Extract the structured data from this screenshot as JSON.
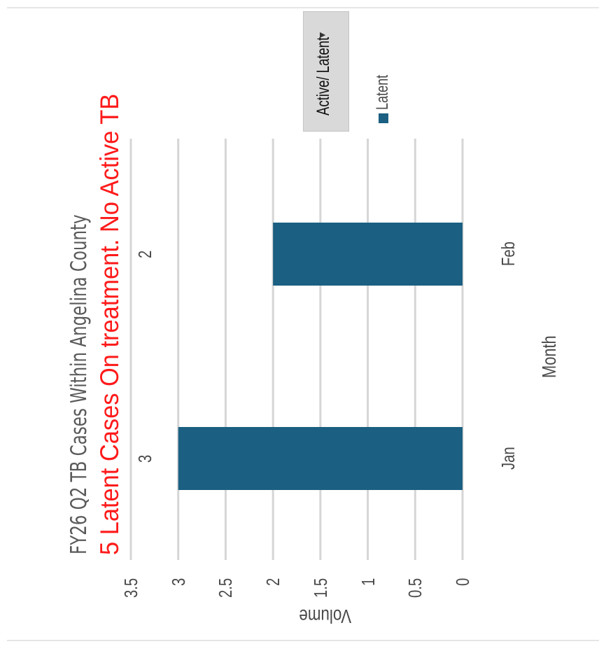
{
  "chart_data": {
    "type": "bar",
    "title": "FY26 Q2 TB Cases Within Angelina County",
    "annotation": "5 Latent Cases On treatment.  No Active TB",
    "categories": [
      "Jan",
      "Feb"
    ],
    "series": [
      {
        "name": "Latent",
        "values": [
          3,
          2
        ],
        "color": "#1b5f82"
      }
    ],
    "data_labels": [
      "3",
      "2"
    ],
    "xlabel": "Month",
    "ylabel": "Volume",
    "ylim": [
      0,
      3.5
    ],
    "yticks": [
      "0",
      "0.5",
      "1",
      "1.5",
      "2",
      "2.5",
      "3",
      "3.5"
    ],
    "grid": true,
    "legend_position": "right",
    "orientation": "rotated 90° counter-clockwise",
    "colors": {
      "bar": "#1b5f82",
      "grid": "#d6d6d6",
      "annotation": "#ff1a1a",
      "dropdown_bg": "#d9d9d9"
    }
  },
  "filter": {
    "label": "Active/ Latent",
    "arrow_icon": "triangle-down-icon"
  },
  "legend": {
    "label": "Latent"
  }
}
